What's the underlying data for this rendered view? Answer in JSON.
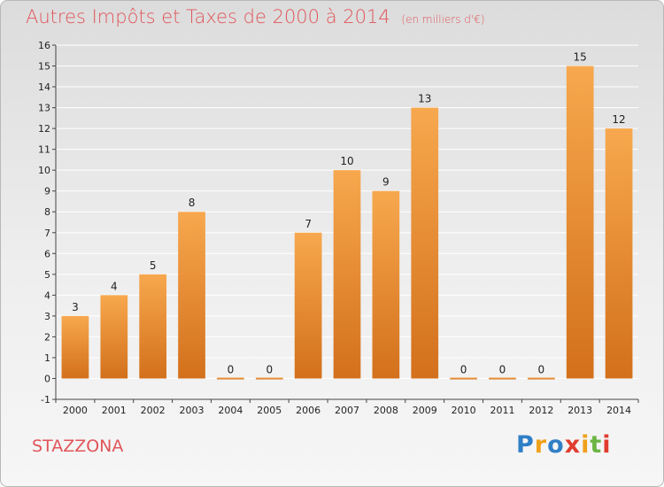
{
  "header": {
    "title": "Autres Impôts et Taxes de 2000 à 2014",
    "unit": "(en milliers d'€)"
  },
  "footer": {
    "place": "STAZZONA",
    "brand": "Proxiti"
  },
  "colors": {
    "title": "#e0555a",
    "bar_light": "#f7a84e",
    "bar_dark": "#d3701c",
    "grid": "#ffffff"
  },
  "chart_data": {
    "type": "bar",
    "title": "Autres Impôts et Taxes de 2000 à 2014",
    "subtitle": "(en milliers d'€)",
    "xlabel": "",
    "ylabel": "",
    "categories": [
      "2000",
      "2001",
      "2002",
      "2003",
      "2004",
      "2005",
      "2006",
      "2007",
      "2008",
      "2009",
      "2010",
      "2011",
      "2012",
      "2013",
      "2014"
    ],
    "values": [
      3,
      4,
      5,
      8,
      0,
      0,
      7,
      10,
      9,
      13,
      0,
      0,
      0,
      15,
      12
    ],
    "ylim": [
      -1,
      16
    ],
    "yticks": [
      -1,
      0,
      1,
      2,
      3,
      4,
      5,
      6,
      7,
      8,
      9,
      10,
      11,
      12,
      13,
      14,
      15,
      16
    ],
    "grid": true,
    "data_labels": true,
    "legend": "none"
  }
}
